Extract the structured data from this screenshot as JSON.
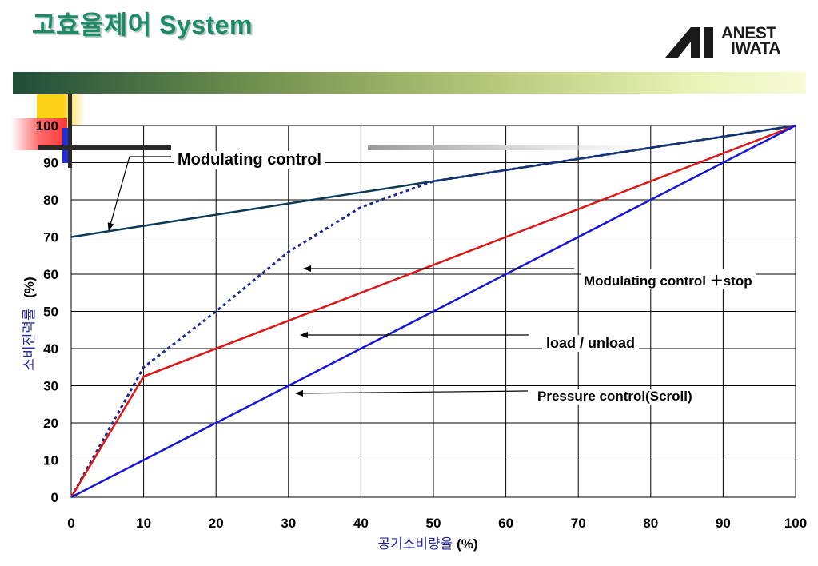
{
  "title": "고효율제어 System",
  "logo": {
    "line1": "ANEST",
    "line2": "IWATA"
  },
  "chart_data": {
    "type": "line",
    "xlabel": "공기소비량율",
    "xlabel_unit": "(%)",
    "ylabel": "소비전력률",
    "ylabel_unit": "(%)",
    "xlim": [
      0,
      100
    ],
    "ylim": [
      0,
      100
    ],
    "x_ticks": [
      0,
      10,
      20,
      30,
      40,
      50,
      60,
      70,
      80,
      90,
      100
    ],
    "y_ticks": [
      0,
      10,
      20,
      30,
      40,
      50,
      60,
      70,
      80,
      90,
      100
    ],
    "grid": true,
    "series": [
      {
        "name": "Modulating control",
        "color": "#0b3a55",
        "dash": false,
        "x": [
          0,
          100
        ],
        "y": [
          70,
          100
        ]
      },
      {
        "name": "Modulating control ＋stop",
        "color": "#1a2c8f",
        "dash": true,
        "x": [
          0,
          10,
          20,
          30,
          40,
          50,
          60,
          70,
          80,
          90,
          100
        ],
        "y": [
          0,
          35,
          50,
          66,
          78,
          85,
          88,
          91,
          94,
          97,
          100
        ]
      },
      {
        "name": "load / unload",
        "color": "#e01515",
        "dash": false,
        "x": [
          0,
          10,
          100
        ],
        "y": [
          0,
          32.5,
          100
        ]
      },
      {
        "name": "Pressure control(Scroll)",
        "color": "#1515d8",
        "dash": false,
        "x": [
          0,
          100
        ],
        "y": [
          0,
          100
        ]
      }
    ],
    "annotations": [
      {
        "text": "Modulating control",
        "series": 0
      },
      {
        "text": "Modulating control ＋stop",
        "series": 1
      },
      {
        "text": "load / unload",
        "series": 2
      },
      {
        "text": "Pressure control(Scroll)",
        "series": 3
      }
    ]
  }
}
